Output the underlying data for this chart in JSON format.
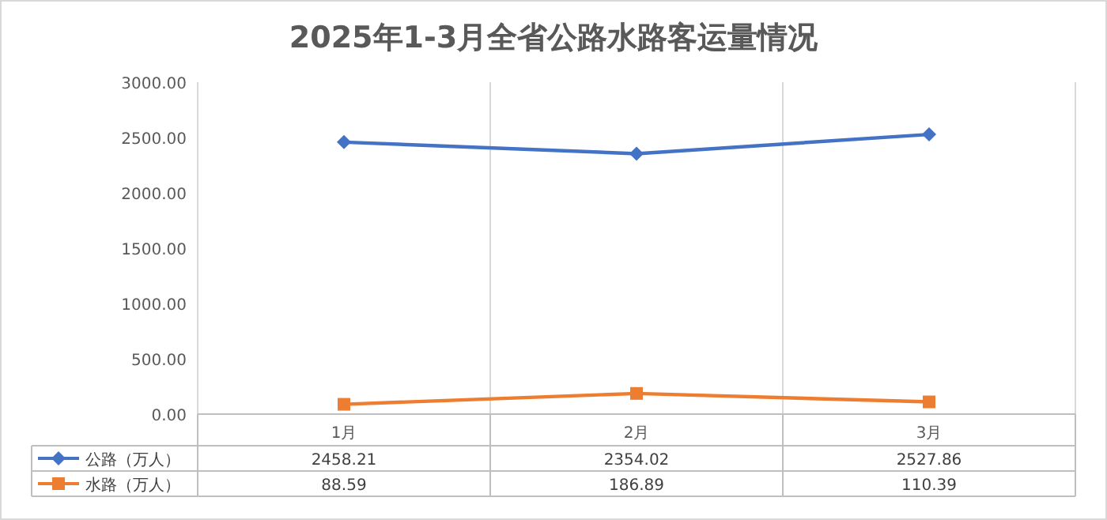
{
  "chart_data": {
    "type": "line",
    "title": "2025年1-3月全省公路水路客运量情况",
    "categories": [
      "1月",
      "2月",
      "3月"
    ],
    "series": [
      {
        "name": "公路（万人）",
        "color": "#4472c4",
        "marker": "diamond",
        "values": [
          2458.21,
          2354.02,
          2527.86
        ]
      },
      {
        "name": "水路（万人）",
        "color": "#ed7d31",
        "marker": "square",
        "values": [
          88.59,
          186.89,
          110.39
        ]
      }
    ],
    "ylim": [
      0,
      3000
    ],
    "yticks": [
      {
        "value": 0,
        "label": "0.00"
      },
      {
        "value": 500,
        "label": "500.00"
      },
      {
        "value": 1000,
        "label": "1000.00"
      },
      {
        "value": 1500,
        "label": "1500.00"
      },
      {
        "value": 2000,
        "label": "2000.00"
      },
      {
        "value": 2500,
        "label": "2500.00"
      },
      {
        "value": 3000,
        "label": "3000.00"
      }
    ],
    "grid": "x",
    "data_labels": true,
    "legend": "bottom",
    "line_style": "solid"
  }
}
